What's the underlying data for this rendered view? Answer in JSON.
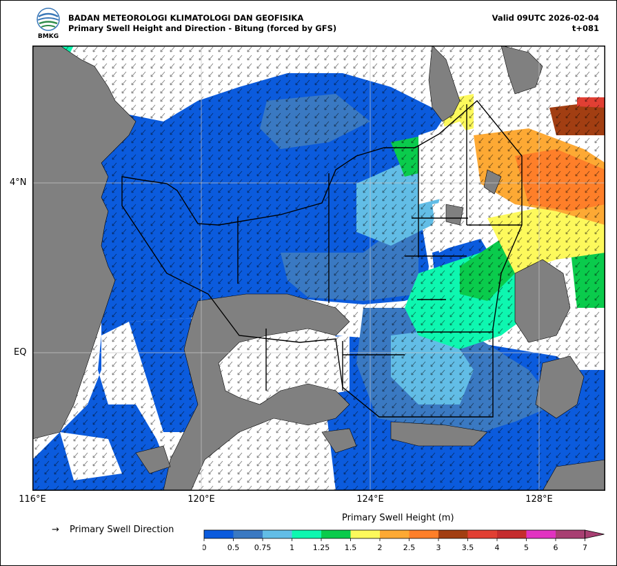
{
  "header": {
    "agency": "BADAN METEOROLOGI KLIMATOLOGI DAN GEOFISIKA",
    "product": "Primary Swell Height and Direction - Bitung (forced by GFS)",
    "valid": "Valid 09UTC 2026-02-04",
    "step": "t+081",
    "logo_text": "BMKG"
  },
  "axes": {
    "x_ticks": [
      "116°E",
      "120°E",
      "124°E",
      "128°E"
    ],
    "y_ticks": [
      "4°N",
      "EQ"
    ]
  },
  "legend": {
    "arrow_glyph": "→",
    "label": "Primary Swell Direction"
  },
  "colorbar": {
    "title": "Primary Swell Height (m)",
    "ticks": [
      "0",
      "0.5",
      "0.75",
      "1",
      "1.25",
      "1.5",
      "2",
      "2.5",
      "3",
      "3.5",
      "4",
      "5",
      "6",
      "7"
    ],
    "colors": [
      "#0b5bdd",
      "#3a79c2",
      "#62bde6",
      "#0ef7b0",
      "#0acb4c",
      "#fdf95c",
      "#fda934",
      "#fe7f29",
      "#a23e12",
      "#e13f33",
      "#c52c2e",
      "#e133c1",
      "#a83f72"
    ]
  },
  "map_colors": {
    "land": "#808080",
    "grid": "#c8c8c8",
    "deep": "#0b5bdd",
    "mid": "#3a79c2"
  }
}
